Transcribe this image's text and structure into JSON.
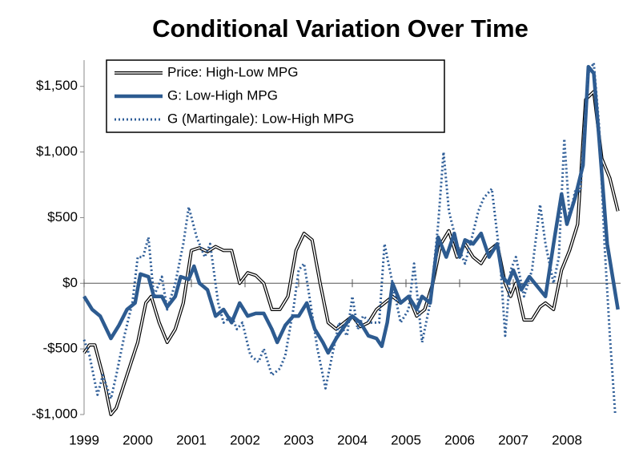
{
  "chart_data": {
    "type": "line",
    "title": "Conditional Variation Over Time",
    "xlim": [
      1999,
      2009
    ],
    "xticks": [
      1999,
      2000,
      2001,
      2002,
      2003,
      2004,
      2005,
      2006,
      2007,
      2008
    ],
    "ylim": [
      -1000,
      1700
    ],
    "yticks": [
      {
        "value": -1000,
        "label": "-$1,000"
      },
      {
        "value": -500,
        "label": "-$500"
      },
      {
        "value": 0,
        "label": "$0"
      },
      {
        "value": 500,
        "label": "$500"
      },
      {
        "value": 1000,
        "label": "$1,000"
      },
      {
        "value": 1500,
        "label": "$1,500"
      }
    ],
    "grid": false,
    "legend": "top-left",
    "series": [
      {
        "name": "Price: High-Low MPG",
        "color": "#000000",
        "style": "double",
        "x": [
          1999,
          1999.1,
          1999.2,
          1999.35,
          1999.5,
          1999.6,
          1999.8,
          2000.0,
          2000.15,
          2000.25,
          2000.4,
          2000.55,
          2000.7,
          2000.85,
          2001.0,
          2001.15,
          2001.3,
          2001.45,
          2001.6,
          2001.75,
          2001.9,
          2002.05,
          2002.2,
          2002.35,
          2002.5,
          2002.65,
          2002.8,
          2002.95,
          2003.1,
          2003.25,
          2003.4,
          2003.55,
          2003.7,
          2003.85,
          2004.0,
          2004.15,
          2004.3,
          2004.45,
          2004.6,
          2004.75,
          2004.9,
          2005.05,
          2005.2,
          2005.35,
          2005.5,
          2005.65,
          2005.8,
          2005.95,
          2006.1,
          2006.25,
          2006.4,
          2006.55,
          2006.7,
          2006.85,
          2006.95,
          2007.05,
          2007.2,
          2007.35,
          2007.5,
          2007.6,
          2007.75,
          2007.9,
          2008.05,
          2008.2,
          2008.35,
          2008.5,
          2008.65,
          2008.8,
          2008.95
        ],
        "values": [
          -530,
          -470,
          -470,
          -700,
          -1000,
          -950,
          -700,
          -450,
          -150,
          -100,
          -300,
          -450,
          -350,
          -150,
          250,
          270,
          240,
          280,
          250,
          250,
          0,
          80,
          60,
          0,
          -200,
          -200,
          -100,
          250,
          380,
          330,
          0,
          -300,
          -350,
          -300,
          -250,
          -330,
          -300,
          -200,
          -150,
          -100,
          -150,
          -100,
          -250,
          -200,
          0,
          300,
          400,
          200,
          300,
          200,
          150,
          250,
          300,
          0,
          -100,
          0,
          -280,
          -280,
          -180,
          -150,
          -200,
          100,
          250,
          450,
          1400,
          1460,
          950,
          800,
          550
        ]
      },
      {
        "name": "G: Low-High MPG",
        "color": "#2d5b90",
        "style": "solid",
        "x": [
          1999,
          1999.15,
          1999.3,
          1999.5,
          1999.65,
          1999.8,
          1999.95,
          2000.05,
          2000.2,
          2000.3,
          2000.45,
          2000.55,
          2000.7,
          2000.8,
          2000.95,
          2001.05,
          2001.15,
          2001.3,
          2001.45,
          2001.6,
          2001.75,
          2001.9,
          2002.05,
          2002.2,
          2002.35,
          2002.5,
          2002.6,
          2002.75,
          2002.9,
          2003.0,
          2003.15,
          2003.3,
          2003.45,
          2003.55,
          2003.7,
          2003.9,
          2004.0,
          2004.15,
          2004.3,
          2004.45,
          2004.55,
          2004.65,
          2004.75,
          2004.9,
          2005.05,
          2005.2,
          2005.3,
          2005.45,
          2005.6,
          2005.75,
          2005.9,
          2006.0,
          2006.1,
          2006.25,
          2006.4,
          2006.55,
          2006.7,
          2006.8,
          2006.9,
          2007.0,
          2007.15,
          2007.3,
          2007.5,
          2007.6,
          2007.75,
          2007.9,
          2008.0,
          2008.15,
          2008.3,
          2008.4,
          2008.5,
          2008.6,
          2008.75,
          2008.95
        ],
        "values": [
          -100,
          -200,
          -250,
          -420,
          -320,
          -200,
          -150,
          70,
          50,
          -100,
          -100,
          -180,
          -100,
          50,
          30,
          130,
          0,
          -50,
          -250,
          -200,
          -300,
          -150,
          -250,
          -230,
          -230,
          -350,
          -450,
          -320,
          -250,
          -250,
          -150,
          -350,
          -450,
          -530,
          -420,
          -300,
          -250,
          -300,
          -400,
          -420,
          -480,
          -300,
          0,
          -150,
          -100,
          -200,
          -100,
          -150,
          350,
          200,
          380,
          200,
          330,
          300,
          380,
          200,
          300,
          50,
          0,
          100,
          -50,
          50,
          -50,
          -100,
          300,
          680,
          450,
          650,
          900,
          1650,
          1600,
          1100,
          300,
          -200
        ]
      },
      {
        "name": "G (Martingale): Low-High MPG",
        "color": "#2f5e98",
        "style": "dotted",
        "x": [
          1999,
          1999.1,
          1999.25,
          1999.35,
          1999.5,
          1999.6,
          1999.75,
          1999.9,
          2000.0,
          2000.1,
          2000.2,
          2000.3,
          2000.45,
          2000.55,
          2000.7,
          2000.85,
          2000.95,
          2001.1,
          2001.25,
          2001.35,
          2001.5,
          2001.6,
          2001.75,
          2001.85,
          2001.95,
          2002.1,
          2002.25,
          2002.35,
          2002.5,
          2002.65,
          2002.75,
          2002.9,
          2003.0,
          2003.1,
          2003.2,
          2003.35,
          2003.5,
          2003.6,
          2003.75,
          2003.9,
          2004.0,
          2004.1,
          2004.2,
          2004.35,
          2004.5,
          2004.6,
          2004.75,
          2004.9,
          2005.05,
          2005.15,
          2005.3,
          2005.45,
          2005.6,
          2005.7,
          2005.8,
          2005.95,
          2006.1,
          2006.2,
          2006.35,
          2006.45,
          2006.6,
          2006.75,
          2006.85,
          2006.95,
          2007.05,
          2007.2,
          2007.35,
          2007.5,
          2007.6,
          2007.75,
          2007.85,
          2007.95,
          2008.05,
          2008.15,
          2008.25,
          2008.4,
          2008.5,
          2008.6,
          2008.7,
          2008.8,
          2008.9
        ],
        "values": [
          -430,
          -550,
          -850,
          -700,
          -880,
          -700,
          -400,
          -150,
          200,
          200,
          350,
          -100,
          50,
          -200,
          0,
          300,
          580,
          350,
          200,
          300,
          -150,
          -300,
          -250,
          -350,
          -300,
          -550,
          -600,
          -500,
          -700,
          -650,
          -550,
          -200,
          100,
          150,
          -100,
          -500,
          -800,
          -600,
          -300,
          -400,
          -100,
          -350,
          -250,
          -300,
          -300,
          300,
          0,
          -300,
          -200,
          150,
          -450,
          -150,
          450,
          1000,
          550,
          300,
          150,
          300,
          550,
          650,
          720,
          200,
          -400,
          100,
          200,
          -100,
          100,
          600,
          300,
          0,
          200,
          1100,
          500,
          700,
          700,
          1600,
          1680,
          1200,
          300,
          -400,
          -1000
        ]
      }
    ]
  }
}
